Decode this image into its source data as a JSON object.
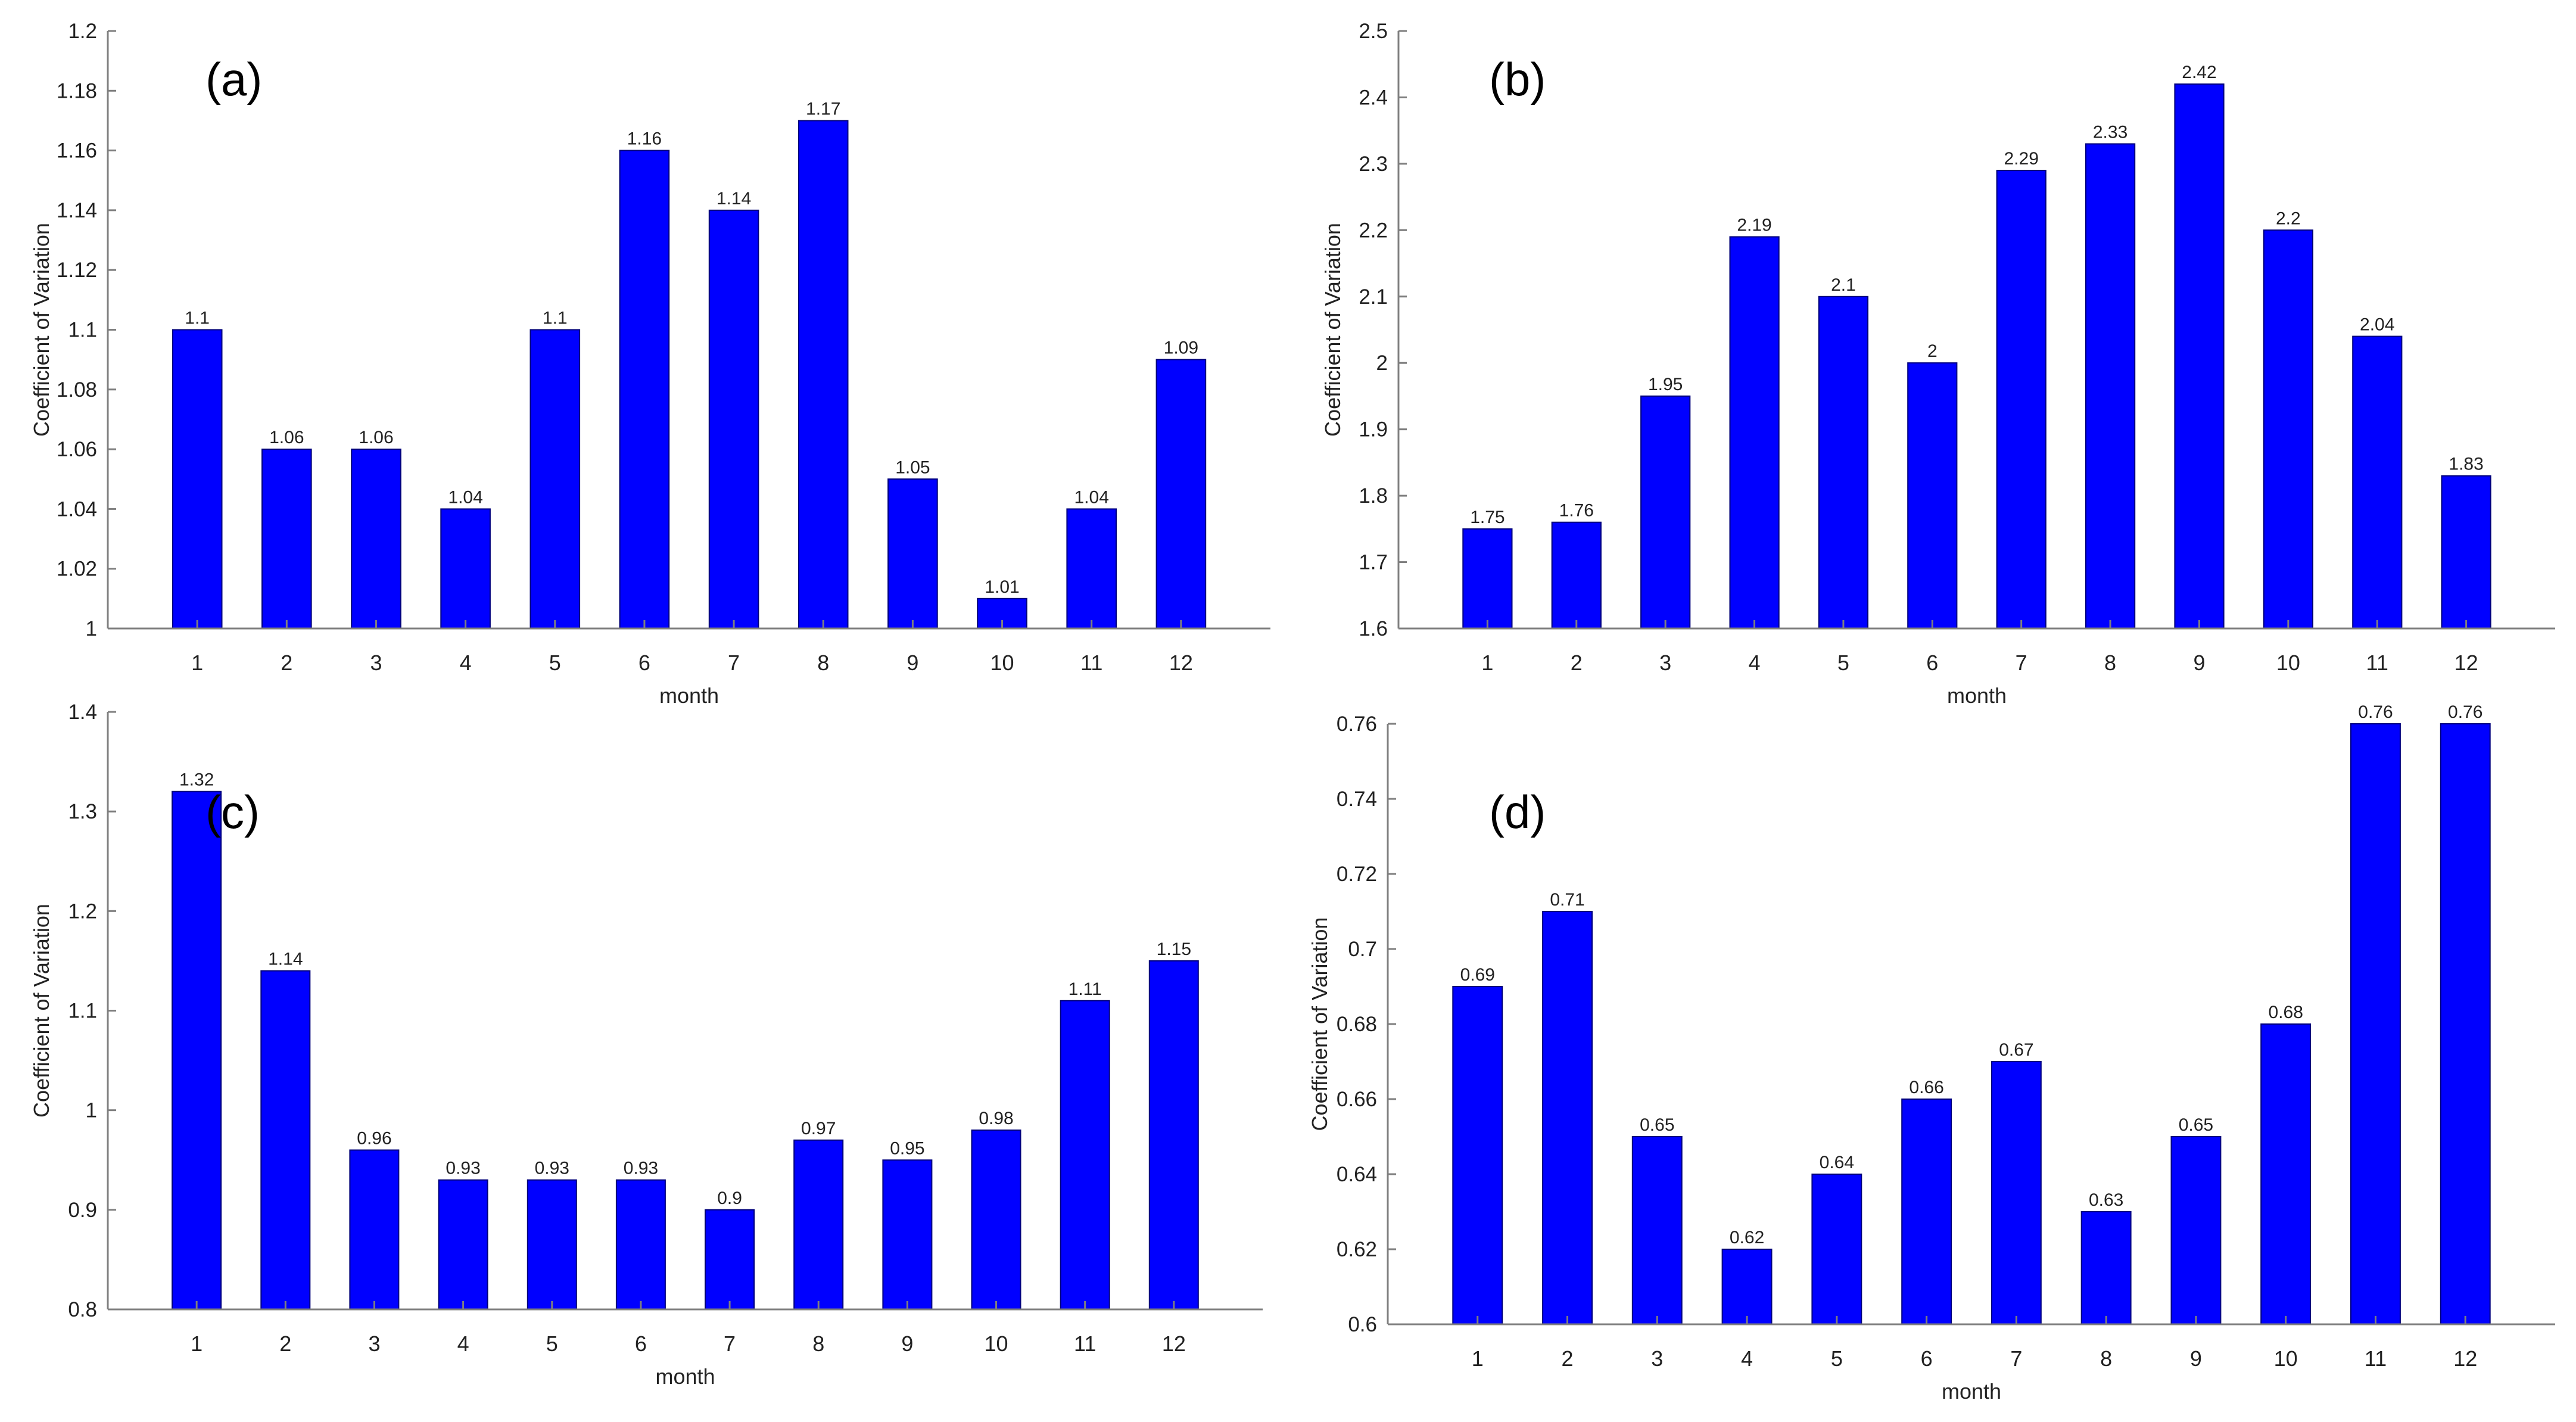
{
  "figure": {
    "bar_color": "#0000ff",
    "axis_color": "#7f7f7f",
    "text_color": "#222222"
  },
  "chart_data": [
    {
      "type": "bar",
      "panel": "(a)",
      "title": "",
      "xlabel": "month",
      "ylabel": "Coefficient of Variation",
      "categories": [
        "1",
        "2",
        "3",
        "4",
        "5",
        "6",
        "7",
        "8",
        "9",
        "10",
        "11",
        "12"
      ],
      "values": [
        1.1,
        1.06,
        1.06,
        1.04,
        1.1,
        1.16,
        1.14,
        1.17,
        1.05,
        1.01,
        1.04,
        1.09
      ],
      "value_labels": [
        "1.1",
        "1.06",
        "1.06",
        "1.04",
        "1.1",
        "1.16",
        "1.14",
        "1.17",
        "1.05",
        "1.01",
        "1.04",
        "1.09"
      ],
      "ylim": [
        1,
        1.2
      ],
      "yticks": [
        1,
        1.02,
        1.04,
        1.06,
        1.08,
        1.1,
        1.12,
        1.14,
        1.16,
        1.18,
        1.2
      ],
      "ytick_labels": [
        "1",
        "1.02",
        "1.04",
        "1.06",
        "1.08",
        "1.1",
        "1.12",
        "1.14",
        "1.16",
        "1.18",
        "1.2"
      ]
    },
    {
      "type": "bar",
      "panel": "(b)",
      "title": "",
      "xlabel": "month",
      "ylabel": "Coefficient of Variation",
      "categories": [
        "1",
        "2",
        "3",
        "4",
        "5",
        "6",
        "7",
        "8",
        "9",
        "10",
        "11",
        "12"
      ],
      "values": [
        1.75,
        1.76,
        1.95,
        2.19,
        2.1,
        2,
        2.29,
        2.33,
        2.42,
        2.2,
        2.04,
        1.83
      ],
      "value_labels": [
        "1.75",
        "1.76",
        "1.95",
        "2.19",
        "2.1",
        "2",
        "2.29",
        "2.33",
        "2.42",
        "2.2",
        "2.04",
        "1.83"
      ],
      "ylim": [
        1.6,
        2.5
      ],
      "yticks": [
        1.6,
        1.7,
        1.8,
        1.9,
        2,
        2.1,
        2.2,
        2.3,
        2.4,
        2.5
      ],
      "ytick_labels": [
        "1.6",
        "1.7",
        "1.8",
        "1.9",
        "2",
        "2.1",
        "2.2",
        "2.3",
        "2.4",
        "2.5"
      ]
    },
    {
      "type": "bar",
      "panel": "(c)",
      "title": "",
      "xlabel": "month",
      "ylabel": "Coefficient of Variation",
      "categories": [
        "1",
        "2",
        "3",
        "4",
        "5",
        "6",
        "7",
        "8",
        "9",
        "10",
        "11",
        "12"
      ],
      "values": [
        1.32,
        1.14,
        0.96,
        0.93,
        0.93,
        0.93,
        0.9,
        0.97,
        0.95,
        0.98,
        1.11,
        1.15
      ],
      "value_labels": [
        "1.32",
        "1.14",
        "0.96",
        "0.93",
        "0.93",
        "0.93",
        "0.9",
        "0.97",
        "0.95",
        "0.98",
        "1.11",
        "1.15"
      ],
      "ylim": [
        0.8,
        1.4
      ],
      "yticks": [
        0.8,
        0.9,
        1,
        1.1,
        1.2,
        1.3,
        1.4
      ],
      "ytick_labels": [
        "0.8",
        "0.9",
        "1",
        "1.1",
        "1.2",
        "1.3",
        "1.4"
      ]
    },
    {
      "type": "bar",
      "panel": "(d)",
      "title": "",
      "xlabel": "month",
      "ylabel": "Coefficient of Variation",
      "categories": [
        "1",
        "2",
        "3",
        "4",
        "5",
        "6",
        "7",
        "8",
        "9",
        "10",
        "11",
        "12"
      ],
      "values": [
        0.69,
        0.71,
        0.65,
        0.62,
        0.64,
        0.66,
        0.67,
        0.63,
        0.65,
        0.68,
        0.76,
        0.76
      ],
      "value_labels": [
        "0.69",
        "0.71",
        "0.65",
        "0.62",
        "0.64",
        "0.66",
        "0.67",
        "0.63",
        "0.65",
        "0.68",
        "0.76",
        "0.76"
      ],
      "ylim": [
        0.6,
        0.76
      ],
      "yticks": [
        0.6,
        0.62,
        0.64,
        0.66,
        0.68,
        0.7,
        0.72,
        0.74,
        0.76
      ],
      "ytick_labels": [
        "0.6",
        "0.62",
        "0.64",
        "0.66",
        "0.68",
        "0.7",
        "0.72",
        "0.74",
        "0.76"
      ]
    }
  ]
}
